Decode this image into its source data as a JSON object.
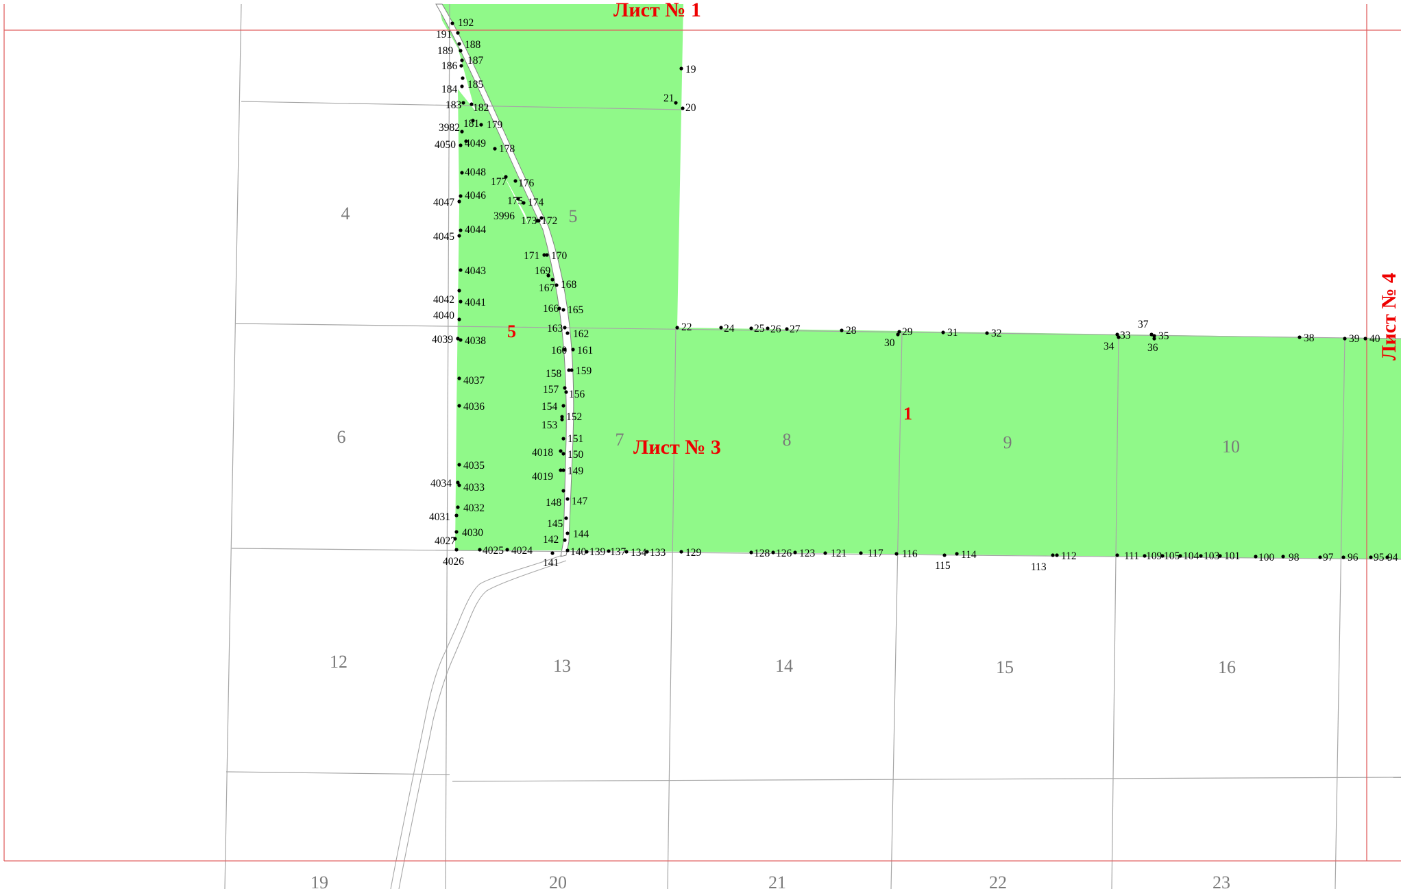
{
  "map": {
    "colors": {
      "parcel_fill": "#90f989",
      "grid_line": "#a6a6a6",
      "sheet_frame": "#e06060",
      "sheet_label": "#ee0000",
      "section_label": "#7a7a7a",
      "point": "#000000"
    },
    "sheet_labels": [
      "Лист № 1",
      "Лист № 3",
      "Лист № 4"
    ],
    "parcel_labels": [
      "5",
      "1"
    ],
    "sections": [
      "4",
      "5",
      "6",
      "7",
      "8",
      "9",
      "10",
      "12",
      "13",
      "14",
      "15",
      "16",
      "19",
      "20",
      "21",
      "22",
      "23"
    ],
    "points": [
      "192",
      "191",
      "188",
      "189",
      "187",
      "186",
      "185",
      "184",
      "183",
      "182",
      "181",
      "179",
      "3982",
      "4049",
      "4050",
      "178",
      "4048",
      "177",
      "176",
      "4046",
      "4047",
      "175",
      "174",
      "3996",
      "173",
      "172",
      "4044",
      "4045",
      "171",
      "170",
      "4043",
      "169",
      "167",
      "168",
      "4042",
      "4041",
      "4040",
      "166",
      "165",
      "4039",
      "4038",
      "163",
      "162",
      "160",
      "161",
      "158",
      "159",
      "4037",
      "157",
      "156",
      "154",
      "4036",
      "152",
      "153",
      "151",
      "4018",
      "150",
      "4035",
      "4019",
      "149",
      "4034",
      "4033",
      "148",
      "147",
      "4032",
      "4031",
      "145",
      "144",
      "4030",
      "142",
      "4027",
      "4025",
      "4024",
      "140",
      "139",
      "137",
      "134",
      "133",
      "129",
      "4026",
      "141",
      "128",
      "126",
      "123",
      "121",
      "117",
      "116",
      "114",
      "115",
      "113",
      "112",
      "111",
      "109",
      "105",
      "104",
      "103",
      "101",
      "100",
      "98",
      "97",
      "96",
      "95",
      "94",
      "19",
      "20",
      "21",
      "22",
      "24",
      "25",
      "26",
      "27",
      "28",
      "29",
      "30",
      "31",
      "32",
      "33",
      "34",
      "35",
      "36",
      "37",
      "38",
      "39",
      "40"
    ]
  }
}
